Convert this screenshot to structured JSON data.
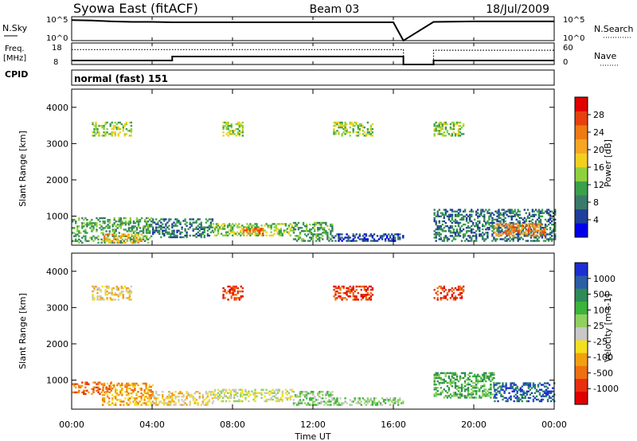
{
  "header": {
    "station": "Syowa East (fitACF)",
    "beam": "Beam 03",
    "date": "18/Jul/2009"
  },
  "top_panels": {
    "nsky_label": "N.Sky",
    "nsky_ticks": [
      "10^5",
      "10^0"
    ],
    "nsearch_label": "N.Search",
    "nsearch_ticks": [
      "10^5",
      "10^0"
    ],
    "freq_label": "Freq.",
    "freq_unit": "[MHz]",
    "freq_ticks": [
      "18",
      "8"
    ],
    "nave_label": "Nave",
    "nave_ticks": [
      "60",
      "0"
    ],
    "cpid_label": "CPID",
    "cpid_value": "normal (fast) 151"
  },
  "colors": {
    "power_scale": [
      "#0000ee",
      "#1f3f9a",
      "#3a7a6a",
      "#3aa04a",
      "#8fd13c",
      "#f2d020",
      "#f5a623",
      "#ef7a12",
      "#e84010",
      "#e00000"
    ],
    "velocity_scale": [
      "#1d2fd1",
      "#2a5ea8",
      "#2e8b57",
      "#3cb33c",
      "#90d060",
      "#c8c8c8",
      "#f2e020",
      "#f2a010",
      "#ef7010",
      "#e83010",
      "#e00000"
    ]
  },
  "chart_data": [
    {
      "type": "line",
      "panel": "N.Sky / N.Search",
      "x_unit": "hours UT",
      "xlim": [
        0,
        24
      ],
      "series": [
        {
          "name": "N.Sky",
          "x": [
            0,
            1,
            2,
            3,
            4,
            5,
            6,
            8,
            10,
            12,
            14,
            16,
            16.5,
            18.0,
            20,
            22,
            24
          ],
          "y": [
            4.6,
            4.5,
            4.3,
            4.2,
            4.2,
            4.1,
            4.1,
            4.1,
            4.1,
            4.1,
            4.1,
            4.1,
            0,
            4.2,
            4.3,
            4.3,
            4.3
          ]
        }
      ]
    },
    {
      "type": "line",
      "panel": "Freq. / Nave",
      "x_unit": "hours UT",
      "xlim": [
        0,
        24
      ],
      "series": [
        {
          "name": "Freq.",
          "x": [
            0,
            5,
            5,
            16.5,
            16.5,
            18,
            18,
            24
          ],
          "y": [
            10,
            10,
            12,
            12,
            8,
            8,
            10,
            10
          ]
        },
        {
          "name": "Nave",
          "x": [
            0,
            16.5,
            16.5,
            18,
            18,
            24
          ],
          "y": [
            45,
            45,
            0,
            0,
            43,
            43
          ]
        }
      ]
    },
    {
      "type": "heatmap",
      "panel": "Power",
      "ylabel": "Slant Range [km]",
      "xlabel": "Time UT",
      "x_ticks": [
        "00:00",
        "04:00",
        "08:00",
        "12:00",
        "16:00",
        "20:00",
        "00:00"
      ],
      "y_ticks": [
        "1000",
        "2000",
        "3000",
        "4000"
      ],
      "xlim": [
        0,
        24
      ],
      "ylim": [
        200,
        4500
      ],
      "colorbar_label": "Power [dB]",
      "colorbar_ticks": [
        "4",
        "8",
        "12",
        "16",
        "20",
        "24",
        "28"
      ],
      "regions": [
        {
          "t0": 0.0,
          "t1": 4.0,
          "r0": 250,
          "r1": 950,
          "level": 3
        },
        {
          "t0": 1.5,
          "t1": 3.5,
          "r0": 250,
          "r1": 500,
          "level": 6
        },
        {
          "t0": 4.0,
          "t1": 7.0,
          "r0": 400,
          "r1": 900,
          "level": 2
        },
        {
          "t0": 7.0,
          "t1": 11.0,
          "r0": 450,
          "r1": 800,
          "level": 4
        },
        {
          "t0": 8.5,
          "t1": 9.5,
          "r0": 500,
          "r1": 650,
          "level": 7
        },
        {
          "t0": 11.0,
          "t1": 13.0,
          "r0": 300,
          "r1": 800,
          "level": 3
        },
        {
          "t0": 13.0,
          "t1": 16.5,
          "r0": 300,
          "r1": 500,
          "level": 1
        },
        {
          "t0": 18.0,
          "t1": 24.0,
          "r0": 300,
          "r1": 1200,
          "level": 2
        },
        {
          "t0": 21.0,
          "t1": 23.5,
          "r0": 450,
          "r1": 800,
          "level": 7
        },
        {
          "t0": 1.0,
          "t1": 3.0,
          "r0": 3200,
          "r1": 3600,
          "level": 4
        },
        {
          "t0": 7.5,
          "t1": 8.5,
          "r0": 3200,
          "r1": 3600,
          "level": 4
        },
        {
          "t0": 13.0,
          "t1": 15.0,
          "r0": 3200,
          "r1": 3600,
          "level": 4
        },
        {
          "t0": 18.0,
          "t1": 19.5,
          "r0": 3200,
          "r1": 3600,
          "level": 4
        }
      ]
    },
    {
      "type": "heatmap",
      "panel": "Velocity",
      "ylabel": "Slant Range [km]",
      "xlabel": "Time UT",
      "x_ticks": [
        "00:00",
        "04:00",
        "08:00",
        "12:00",
        "16:00",
        "20:00",
        "00:00"
      ],
      "y_ticks": [
        "1000",
        "2000",
        "3000",
        "4000"
      ],
      "xlim": [
        0,
        24
      ],
      "ylim": [
        200,
        4500
      ],
      "colorbar_label": "Velocity [m s-1]",
      "colorbar_ticks": [
        "1000",
        "500",
        "100",
        "25",
        "-25",
        "-100",
        "-500",
        "-1000"
      ],
      "regions": [
        {
          "t0": 0.0,
          "t1": 2.0,
          "r0": 600,
          "r1": 950,
          "level": 8
        },
        {
          "t0": 1.5,
          "t1": 4.0,
          "r0": 300,
          "r1": 900,
          "level": 7
        },
        {
          "t0": 4.0,
          "t1": 7.0,
          "r0": 300,
          "r1": 700,
          "level": 6
        },
        {
          "t0": 7.0,
          "t1": 11.0,
          "r0": 400,
          "r1": 750,
          "level": 5
        },
        {
          "t0": 11.0,
          "t1": 13.0,
          "r0": 300,
          "r1": 700,
          "level": 4
        },
        {
          "t0": 13.0,
          "t1": 16.5,
          "r0": 300,
          "r1": 500,
          "level": 4
        },
        {
          "t0": 18.0,
          "t1": 21.0,
          "r0": 500,
          "r1": 1200,
          "level": 3
        },
        {
          "t0": 21.0,
          "t1": 24.0,
          "r0": 400,
          "r1": 900,
          "level": 1
        },
        {
          "t0": 1.0,
          "t1": 3.0,
          "r0": 3200,
          "r1": 3600,
          "level": 6
        },
        {
          "t0": 7.5,
          "t1": 8.5,
          "r0": 3200,
          "r1": 3600,
          "level": 9
        },
        {
          "t0": 13.0,
          "t1": 15.0,
          "r0": 3200,
          "r1": 3600,
          "level": 9
        },
        {
          "t0": 18.0,
          "t1": 19.5,
          "r0": 3200,
          "r1": 3600,
          "level": 9
        }
      ]
    }
  ]
}
